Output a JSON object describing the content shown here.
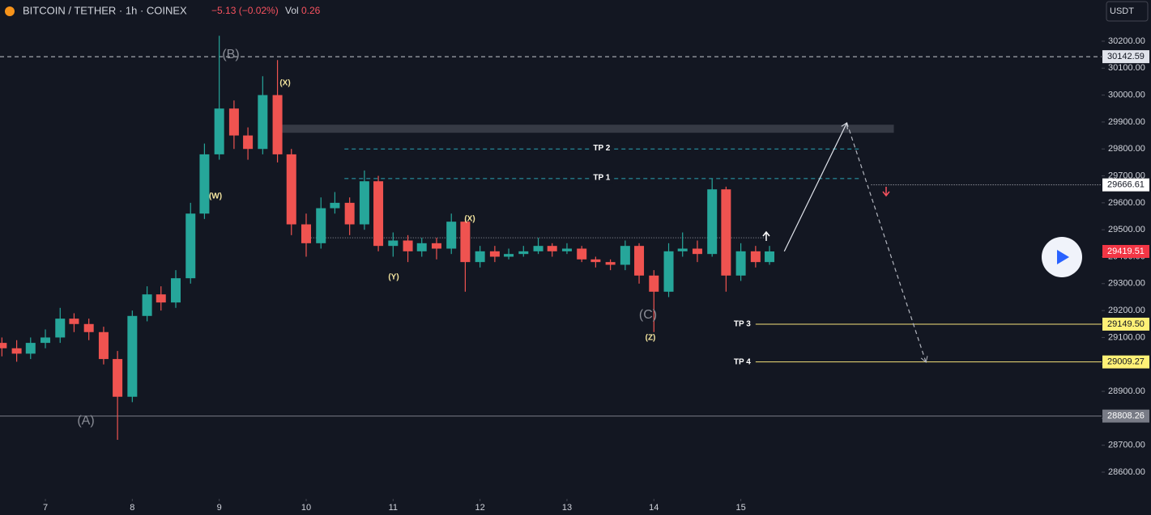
{
  "header": {
    "symbol": "BITCOIN / TETHER · 1h · COINEX",
    "change": "−5.13 (−0.02%)",
    "vol_label": "Vol",
    "vol": "0.26",
    "currency": "USDT"
  },
  "chart_data": {
    "type": "candlestick",
    "x": [
      6.5,
      6.67,
      6.83,
      7,
      7.17,
      7.33,
      7.5,
      7.67,
      7.83,
      8,
      8.17,
      8.33,
      8.5,
      8.67,
      8.83,
      9,
      9.17,
      9.33,
      9.5,
      9.67,
      9.83,
      10,
      10.17,
      10.33,
      10.5,
      10.67,
      10.83,
      11,
      11.17,
      11.33,
      11.5,
      11.67,
      11.83,
      12,
      12.17,
      12.33,
      12.5,
      12.67,
      12.83,
      13,
      13.17,
      13.33,
      13.5,
      13.67,
      13.83,
      14,
      14.17,
      14.33,
      14.5,
      14.67,
      14.83,
      15,
      15.17,
      15.33
    ],
    "open": [
      29080,
      29060,
      29040,
      29080,
      29100,
      29170,
      29150,
      29120,
      29020,
      28880,
      29180,
      29260,
      29230,
      29320,
      29560,
      29780,
      29950,
      29850,
      29800,
      30000,
      29780,
      29520,
      29450,
      29580,
      29600,
      29520,
      29680,
      29440,
      29460,
      29420,
      29450,
      29430,
      29530,
      29380,
      29420,
      29400,
      29410,
      29420,
      29440,
      29420,
      29430,
      29390,
      29380,
      29370,
      29440,
      29330,
      29270,
      29420,
      29430,
      29410,
      29650,
      29330,
      29420,
      29380
    ],
    "high": [
      29100,
      29090,
      29100,
      29130,
      29210,
      29190,
      29170,
      29140,
      29050,
      29200,
      29290,
      29290,
      29350,
      29600,
      29820,
      30220,
      29980,
      29880,
      30070,
      30130,
      29800,
      29560,
      29620,
      29640,
      29620,
      29720,
      29700,
      29490,
      29480,
      29470,
      29470,
      29560,
      29540,
      29440,
      29440,
      29430,
      29440,
      29470,
      29450,
      29450,
      29440,
      29400,
      29390,
      29460,
      29450,
      29350,
      29450,
      29490,
      29460,
      29690,
      29660,
      29450,
      29440,
      29440
    ],
    "low": [
      29030,
      29010,
      29020,
      29060,
      29080,
      29120,
      29090,
      29000,
      28720,
      28860,
      29160,
      29200,
      29210,
      29300,
      29540,
      29760,
      29800,
      29760,
      29780,
      29750,
      29480,
      29400,
      29430,
      29560,
      29480,
      29500,
      29420,
      29400,
      29380,
      29400,
      29390,
      29410,
      29270,
      29360,
      29380,
      29390,
      29400,
      29410,
      29400,
      29410,
      29380,
      29360,
      29350,
      29350,
      29300,
      29120,
      29250,
      29400,
      29380,
      29400,
      29270,
      29310,
      29360,
      29370
    ],
    "close": [
      29060,
      29040,
      29080,
      29100,
      29170,
      29150,
      29120,
      29020,
      28880,
      29180,
      29260,
      29230,
      29320,
      29560,
      29780,
      29950,
      29850,
      29800,
      30000,
      29780,
      29520,
      29450,
      29580,
      29600,
      29520,
      29680,
      29440,
      29460,
      29420,
      29450,
      29430,
      29530,
      29380,
      29420,
      29400,
      29410,
      29420,
      29440,
      29420,
      29430,
      29390,
      29380,
      29370,
      29440,
      29330,
      29270,
      29420,
      29430,
      29410,
      29650,
      29330,
      29420,
      29380,
      29419.51
    ],
    "up_color": "#26a69a",
    "down_color": "#ef5350",
    "xlim": [
      6.478,
      19.15
    ],
    "ylim": [
      28537,
      30353
    ],
    "xticks": [
      7,
      8,
      9,
      10,
      11,
      12,
      13,
      14,
      15
    ],
    "yticks": [
      {
        "value": 28600,
        "label": "28600.00"
      },
      {
        "value": 28700,
        "label": "28700.00"
      },
      {
        "value": 28800,
        "label": "28800.00"
      },
      {
        "value": 28900,
        "label": "28900.00"
      },
      {
        "value": 29000,
        "label": "29000.00"
      },
      {
        "value": 29100,
        "label": "29100.00"
      },
      {
        "value": 29200,
        "label": "29200.00"
      },
      {
        "value": 29300,
        "label": "29300.00"
      },
      {
        "value": 29400,
        "label": "29400.00"
      },
      {
        "value": 29500,
        "label": "29500.00"
      },
      {
        "value": 29600,
        "label": "29600.00"
      },
      {
        "value": 29700,
        "label": "29700.00"
      },
      {
        "value": 29800,
        "label": "29800.00"
      },
      {
        "value": 29900,
        "label": "29900.00"
      },
      {
        "value": 30000,
        "label": "30000.00"
      },
      {
        "value": 30100,
        "label": "30100.00"
      },
      {
        "value": 30200,
        "label": "30200.00"
      }
    ],
    "levels": [
      {
        "price": 30142.59,
        "color": "#c8cad0",
        "dash": "5 4",
        "tag": "#e0e3eb",
        "tag_text": "#131722"
      },
      {
        "price": 29666.61,
        "color": "#c8cad0",
        "dash": "1 2",
        "from": 16.5,
        "tag": "#ffffff",
        "tag_text": "#131722"
      },
      {
        "price": 29419.51,
        "tag": "#f23645",
        "tag_text": "#ffffff"
      },
      {
        "price": {
          "value": 29149.5,
          "label": "29149.50"
        },
        "color": "#f5e27a",
        "from": 15.17,
        "tag": "#fff176",
        "tag_text": "#131722",
        "name": "TP 3",
        "name_at": "start"
      },
      {
        "price": 29009.27,
        "color": "#f5e27a",
        "from": 15.17,
        "tag": "#fff176",
        "tag_text": "#131722",
        "name": "TP 4",
        "name_at": "start"
      },
      {
        "price": 28808.26,
        "color": "#787b86",
        "tag": "#787b86",
        "tag_text": "#ffffff"
      },
      {
        "price": 29690,
        "color": "#2aa5b5",
        "dash": "5 4",
        "from": 10.44,
        "to": 16.36,
        "name": "TP 1",
        "name_at": "middle"
      },
      {
        "price": 29800,
        "color": "#2aa5b5",
        "dash": "5 4",
        "from": 10.44,
        "to": 16.36,
        "name": "TP 2",
        "name_at": "middle"
      },
      {
        "price": 29470,
        "color": "#9598a1",
        "dash": "1 2",
        "from": 9.97,
        "to": 15.29
      }
    ],
    "zone": {
      "top": 29890,
      "bottom": 29860,
      "from": 9.67,
      "to": 16.76,
      "color": "#363a45"
    },
    "projection": {
      "x": [
        15.5,
        16.22,
        17.13
      ],
      "y": [
        29420,
        29897,
        29008
      ]
    },
    "annotations": [
      "(B)",
      "(X)",
      "(W)",
      "(Y)",
      "(X)",
      "(C)",
      "(Z)",
      "(A)"
    ]
  }
}
